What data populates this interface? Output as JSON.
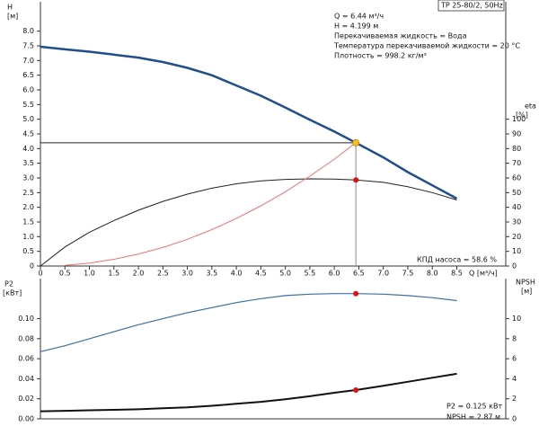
{
  "chart_data": [
    {
      "type": "line",
      "title": "TP 25-80/2, 50Hz",
      "ylabel": "H",
      "yunit": "[м]",
      "y2label": "eta",
      "y2unit": "[%]",
      "xlabel": "Q [м³/ч]",
      "info": [
        "Q = 6.44 м³/ч",
        "H = 4.199 м",
        "Перекачиваемая жидкость = Вода",
        "Температура перекачиваемой жидкости = 20 °C",
        "Плотность = 998.2 кг/м³"
      ],
      "note": "КПД насоса = 58.6 %",
      "xlim": [
        0,
        9.5
      ],
      "ylim": [
        0,
        9
      ],
      "y2lim": [
        0,
        180
      ],
      "xticks": [
        0,
        0.5,
        {
          "value": 1,
          "label": "1.0"
        },
        1.5,
        {
          "value": 2,
          "label": "2.0"
        },
        2.5,
        {
          "value": 3,
          "label": "3.0"
        },
        3.5,
        {
          "value": 4,
          "label": "4.0"
        },
        4.5,
        {
          "value": 5,
          "label": "5.0"
        },
        5.5,
        {
          "value": 6,
          "label": "6.0"
        },
        6.5,
        {
          "value": 7,
          "label": "7.0"
        },
        7.5,
        {
          "value": 8,
          "label": "8.0"
        },
        8.5
      ],
      "yticks": [
        0,
        0.5,
        {
          "value": 1,
          "label": "1.0"
        },
        1.5,
        {
          "value": 2,
          "label": "2.0"
        },
        2.5,
        {
          "value": 3,
          "label": "3.0"
        },
        3.5,
        {
          "value": 4,
          "label": "4.0"
        },
        4.5,
        {
          "value": 5,
          "label": "5.0"
        },
        5.5,
        {
          "value": 6,
          "label": "6.0"
        },
        6.5,
        {
          "value": 7,
          "label": "7.0"
        },
        7.5,
        {
          "value": 8,
          "label": "8.0"
        }
      ],
      "y2ticks": [
        0,
        10,
        20,
        30,
        40,
        50,
        60,
        70,
        80,
        90,
        100
      ],
      "series": [
        {
          "color": "#1f4e8c",
          "linewidth": 2.5,
          "x": [
            0,
            0.5,
            1,
            1.5,
            2,
            2.5,
            3,
            3.5,
            4,
            4.5,
            5,
            5.5,
            6,
            6.44,
            7,
            7.5,
            8,
            8.5
          ],
          "values": [
            7.47,
            7.38,
            7.3,
            7.2,
            7.1,
            6.95,
            6.75,
            6.5,
            6.15,
            5.8,
            5.4,
            4.98,
            4.58,
            4.199,
            3.7,
            3.2,
            2.75,
            2.3
          ]
        },
        {
          "color": "#222222",
          "linewidth": 1,
          "axis": "y2",
          "x": [
            0,
            0.5,
            1,
            1.5,
            2,
            2.5,
            3,
            3.5,
            4,
            4.5,
            5,
            5.5,
            6,
            6.44,
            7,
            7.5,
            8,
            8.5
          ],
          "values": [
            0,
            13,
            23,
            31,
            38,
            44,
            49,
            53,
            56,
            58,
            59,
            59.4,
            59.2,
            58.6,
            57,
            54,
            50,
            45
          ]
        },
        {
          "color": "#f07070",
          "linewidth": 1,
          "x": [
            0.5,
            1,
            1.5,
            2,
            2.5,
            3,
            3.5,
            4,
            4.5,
            5,
            5.5,
            6,
            6.44
          ],
          "values": [
            0.025,
            0.1,
            0.23,
            0.41,
            0.63,
            0.91,
            1.24,
            1.62,
            2.05,
            2.53,
            3.06,
            3.64,
            4.199
          ]
        }
      ],
      "markers": [
        {
          "x": 6.44,
          "y": 4.199,
          "color": "#f5c518",
          "guides": true
        },
        {
          "x": 6.44,
          "y": 58.6,
          "axis": "y2",
          "color": "#e01010"
        }
      ]
    },
    {
      "type": "line",
      "ylabel": "P2",
      "yunit": "[кВт]",
      "y2label": "NPSH",
      "y2unit": "[м]",
      "info": [
        "P2 = 0.125 кВт",
        "NPSH = 2.87 м"
      ],
      "xlim": [
        0,
        9.5
      ],
      "ylim": [
        0,
        0.14
      ],
      "y2lim": [
        0,
        14
      ],
      "yticks": [
        {
          "value": 0,
          "label": "0.00"
        },
        {
          "value": 0.02,
          "label": "0.02"
        },
        {
          "value": 0.04,
          "label": "0.04"
        },
        {
          "value": 0.06,
          "label": "0.06"
        },
        {
          "value": 0.08,
          "label": "0.08"
        },
        {
          "value": 0.1,
          "label": "0.10"
        }
      ],
      "y2ticks": [
        0,
        2,
        4,
        6,
        8,
        10
      ],
      "series": [
        {
          "color": "#3a6ea5",
          "linewidth": 1.2,
          "x": [
            0,
            0.5,
            1,
            1.5,
            2,
            2.5,
            3,
            3.5,
            4,
            4.5,
            5,
            5.5,
            6,
            6.44,
            7,
            7.5,
            8,
            8.5
          ],
          "values": [
            0.067,
            0.073,
            0.08,
            0.087,
            0.094,
            0.1,
            0.106,
            0.111,
            0.116,
            0.12,
            0.123,
            0.1245,
            0.125,
            0.125,
            0.1245,
            0.123,
            0.121,
            0.118
          ]
        },
        {
          "color": "#111111",
          "linewidth": 2,
          "axis": "y2",
          "x": [
            0,
            0.5,
            1,
            1.5,
            2,
            2.5,
            3,
            3.5,
            4,
            4.5,
            5,
            5.5,
            6,
            6.44,
            7,
            7.5,
            8,
            8.5
          ],
          "values": [
            0.75,
            0.8,
            0.85,
            0.9,
            0.95,
            1.05,
            1.15,
            1.3,
            1.5,
            1.7,
            1.95,
            2.25,
            2.6,
            2.87,
            3.3,
            3.7,
            4.1,
            4.5
          ]
        }
      ],
      "markers": [
        {
          "x": 6.44,
          "y": 0.125,
          "color": "#e01010"
        },
        {
          "x": 6.44,
          "y": 2.87,
          "axis": "y2",
          "color": "#e01010"
        }
      ]
    }
  ]
}
